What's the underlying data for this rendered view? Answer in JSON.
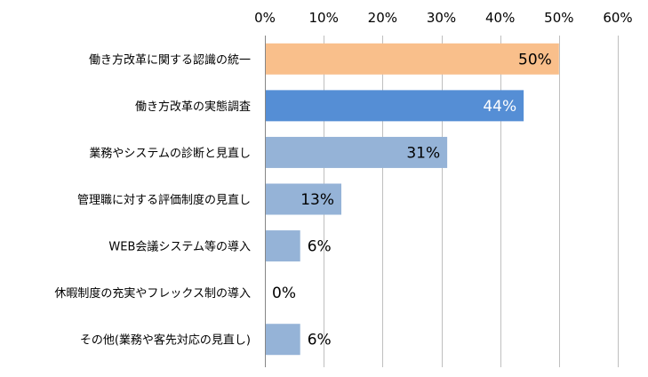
{
  "chart_data": {
    "type": "bar",
    "orientation": "horizontal",
    "xlim": [
      0,
      60
    ],
    "x_ticks": [
      "0%",
      "10%",
      "20%",
      "30%",
      "40%",
      "50%",
      "60%"
    ],
    "grid": true,
    "legend": "none",
    "categories": [
      "働き方改革に関する認識の統一",
      "働き方改革の実態調査",
      "業務やシステムの診断と見直し",
      "管理職に対する評価制度の見直し",
      "WEB会議システム等の導入",
      "休暇制度の充実やフレックス制の導入",
      "その他(業務や客先対応の見直し)"
    ],
    "values": [
      50,
      44,
      31,
      13,
      6,
      0,
      6
    ],
    "data_labels": [
      "50%",
      "44%",
      "31%",
      "13%",
      "6%",
      "0%",
      "6%"
    ],
    "bar_colors": [
      "#F9BF8B",
      "#558ED5",
      "#95B3D7",
      "#95B3D7",
      "#95B3D7",
      "#95B3D7",
      "#95B3D7"
    ],
    "label_colors": [
      "#000000",
      "#FFFFFF",
      "#000000",
      "#000000",
      "#000000",
      "#000000",
      "#000000"
    ]
  }
}
